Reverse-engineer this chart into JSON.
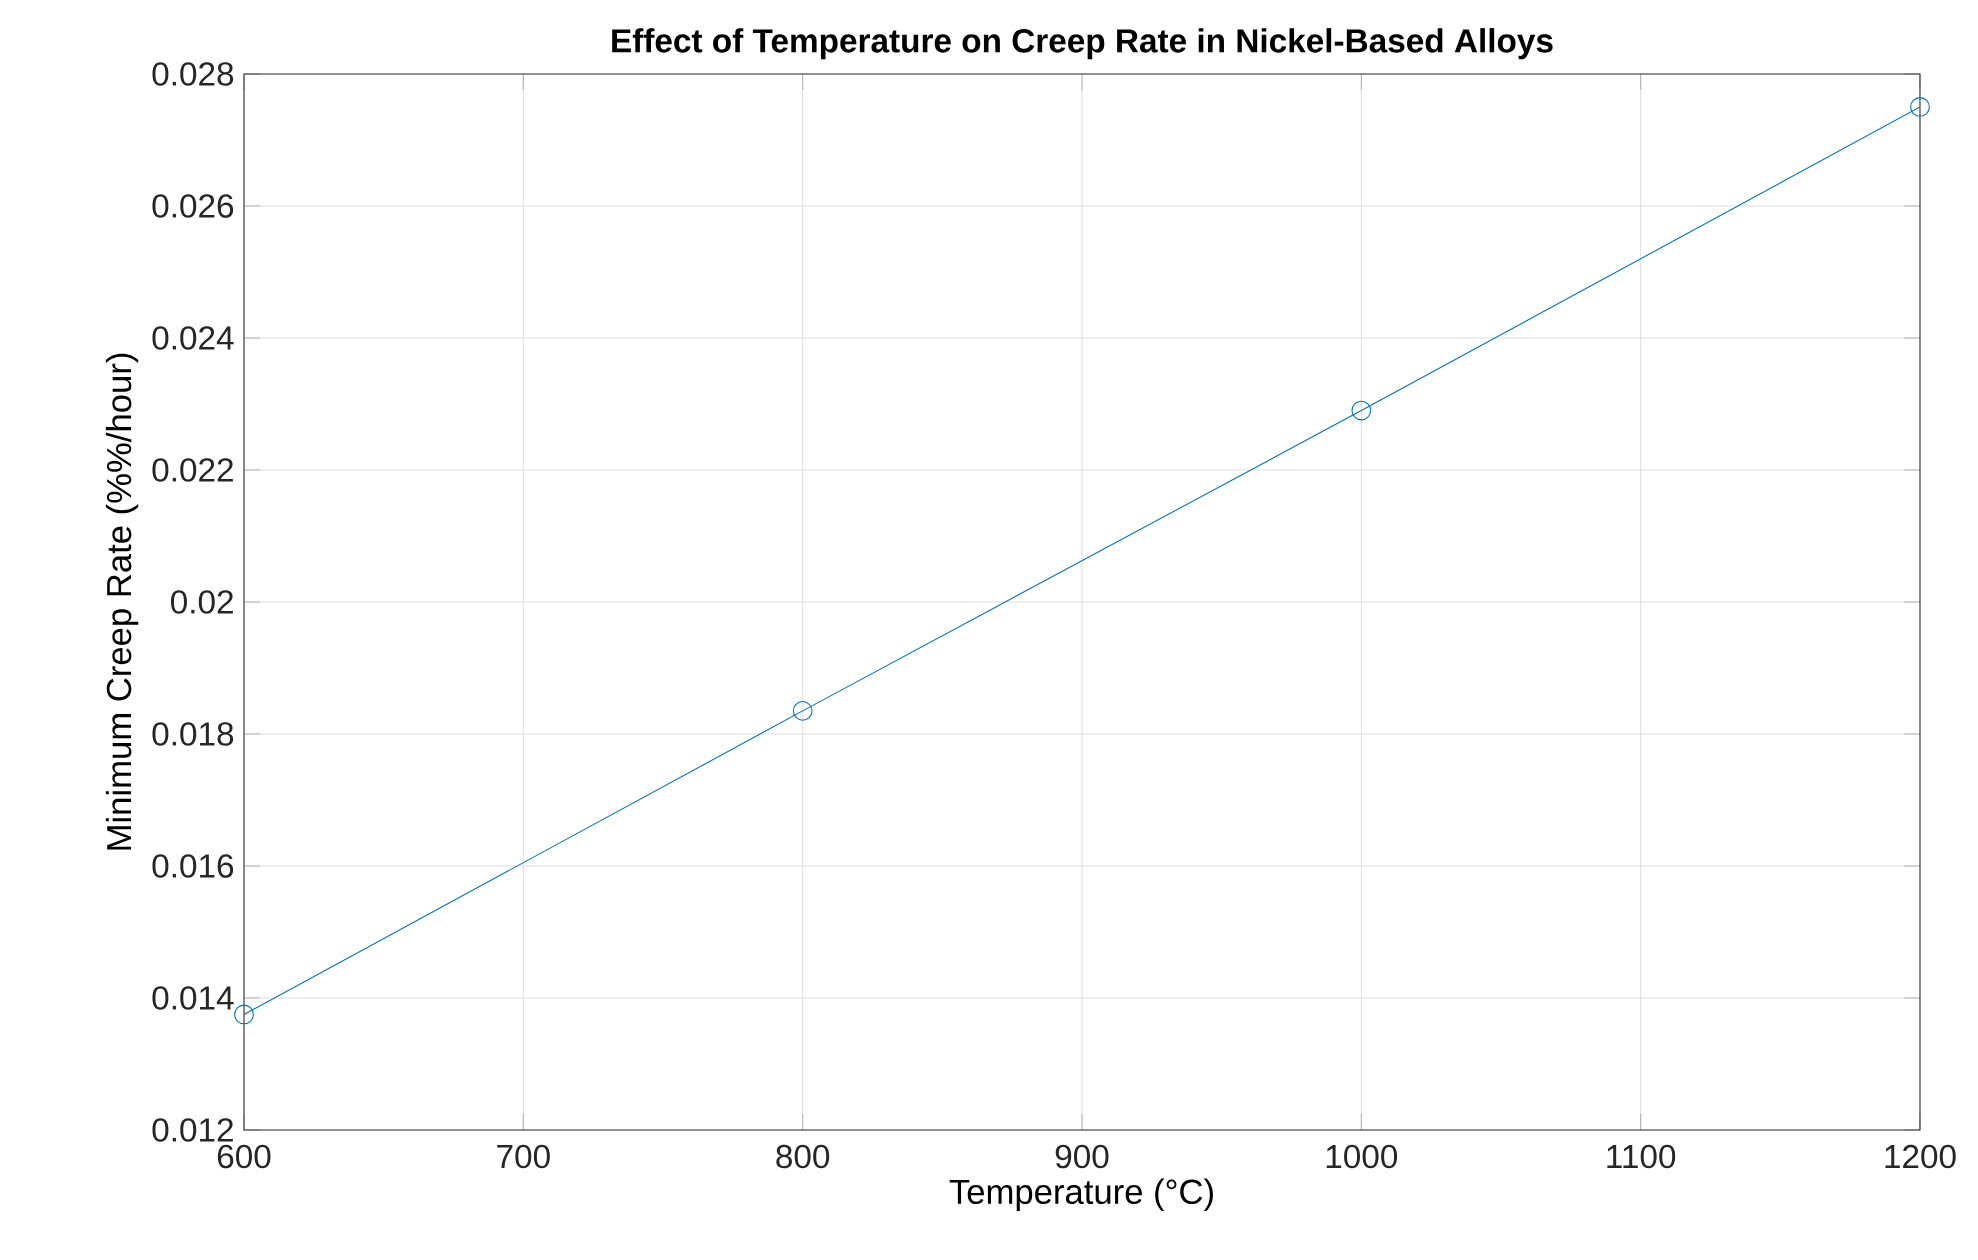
{
  "chart_data": {
    "type": "line",
    "title": "Effect of Temperature on Creep Rate in Nickel-Based Alloys",
    "xlabel": "Temperature (°C)",
    "ylabel": "Minimum Creep Rate (%%/hour)",
    "x": [
      600,
      800,
      1000,
      1200
    ],
    "series": [
      {
        "color": "#0072bd",
        "values": [
          0.01375,
          0.01835,
          0.0229,
          0.0275
        ]
      }
    ],
    "xlim": [
      600,
      1200
    ],
    "xticks": [
      600,
      700,
      800,
      900,
      1000,
      1100,
      1200
    ],
    "ylim": [
      0.012,
      0.028
    ],
    "yticks": [
      0.012,
      0.014,
      0.016,
      0.018,
      0.02,
      0.022,
      0.024,
      0.026,
      0.028
    ],
    "grid": true,
    "marker": "circle",
    "line_style": "solid"
  }
}
